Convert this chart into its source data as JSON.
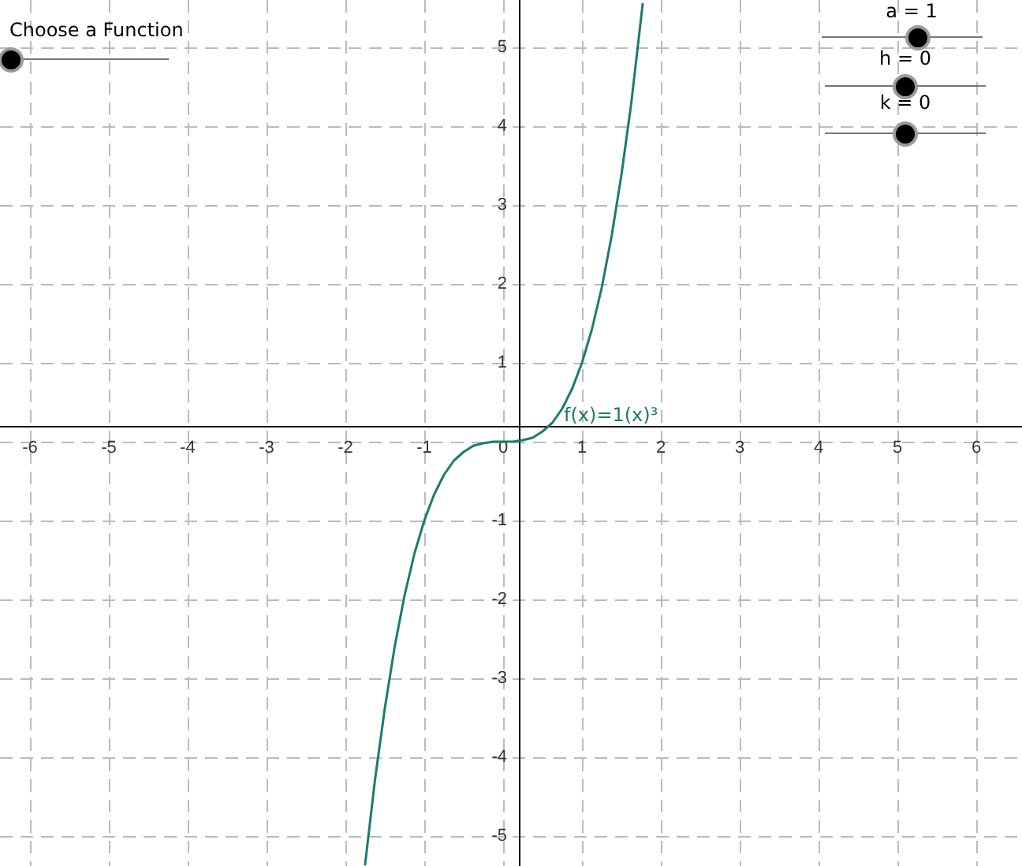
{
  "chart_data": {
    "type": "line",
    "x": [
      -1.75,
      -1.625,
      -1.5,
      -1.375,
      -1.25,
      -1.125,
      -1,
      -0.875,
      -0.75,
      -0.625,
      -0.5,
      -0.375,
      -0.25,
      -0.125,
      0,
      0.125,
      0.25,
      0.375,
      0.5,
      0.625,
      0.75,
      0.875,
      1,
      1.125,
      1.25,
      1.375,
      1.5,
      1.625,
      1.77
    ],
    "series": [
      {
        "name": "f(x)=1(x)³",
        "color": "#1f7a6e",
        "values": [
          -5.36,
          -4.29,
          -3.38,
          -2.6,
          -1.95,
          -1.42,
          -1,
          -0.67,
          -0.42,
          -0.24,
          -0.13,
          -0.05,
          -0.02,
          0,
          0,
          0,
          0.02,
          0.05,
          0.13,
          0.24,
          0.42,
          0.67,
          1,
          1.42,
          1.95,
          2.6,
          3.38,
          4.29,
          5.55
        ]
      }
    ],
    "xlim": [
      -6.38,
      6.58
    ],
    "ylim": [
      -5.38,
      5.6
    ],
    "xticks": [
      -6,
      -5,
      -4,
      -3,
      -2,
      -1,
      0,
      1,
      2,
      3,
      4,
      5,
      6
    ],
    "yticks": [
      -5,
      -4,
      -3,
      -2,
      -1,
      {
        "value": 0,
        "label": null
      },
      1,
      2,
      3,
      4,
      5
    ],
    "grid": true,
    "marker": "none",
    "line_style": "solid",
    "annotations": [
      "Choose a Function",
      "a = 1",
      "h = 0",
      "k = 0"
    ]
  }
}
